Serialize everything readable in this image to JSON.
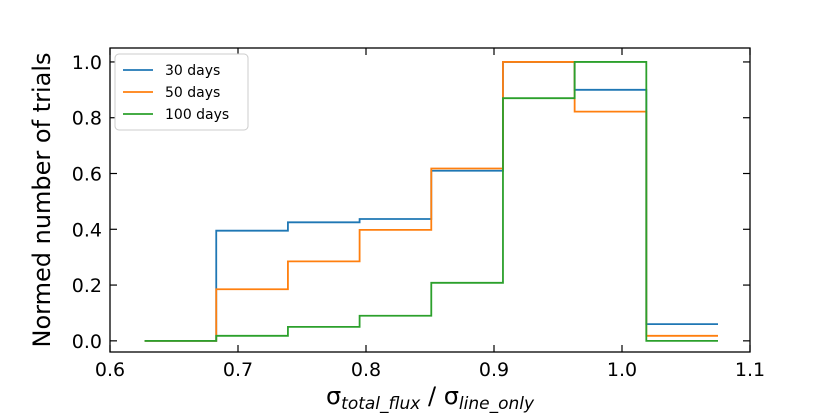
{
  "chart_data": {
    "type": "step",
    "title": "",
    "xlabel_parts": [
      {
        "text": "σ",
        "style": "normal"
      },
      {
        "text": "total_flux",
        "style": "sub"
      },
      {
        "text": " / ",
        "style": "normal"
      },
      {
        "text": "σ",
        "style": "normal"
      },
      {
        "text": "line_only",
        "style": "sub"
      }
    ],
    "ylabel": "Normed number of trials",
    "xlim": [
      0.6,
      1.1
    ],
    "ylim": [
      -0.04,
      1.05
    ],
    "xticks": [
      "0.6",
      "0.7",
      "0.8",
      "0.9",
      "1.0",
      "1.1"
    ],
    "yticks": [
      "0.0",
      "0.2",
      "0.4",
      "0.6",
      "0.8",
      "1.0"
    ],
    "grid": false,
    "legend_position": "top-left",
    "bin_edges": [
      0.627,
      0.683,
      0.739,
      0.795,
      0.851,
      0.907,
      0.963,
      1.019,
      1.075
    ],
    "series": [
      {
        "name": "30 days",
        "color": "#1f77b4",
        "values": [
          0.0,
          0.395,
          0.425,
          0.437,
          0.61,
          1.0,
          0.9,
          0.06
        ]
      },
      {
        "name": "50 days",
        "color": "#ff7f0e",
        "values": [
          0.0,
          0.185,
          0.285,
          0.398,
          0.618,
          1.0,
          0.822,
          0.018
        ]
      },
      {
        "name": "100 days",
        "color": "#2ca02c",
        "values": [
          0.0,
          0.018,
          0.05,
          0.09,
          0.208,
          0.87,
          1.0,
          0.0
        ]
      }
    ]
  }
}
